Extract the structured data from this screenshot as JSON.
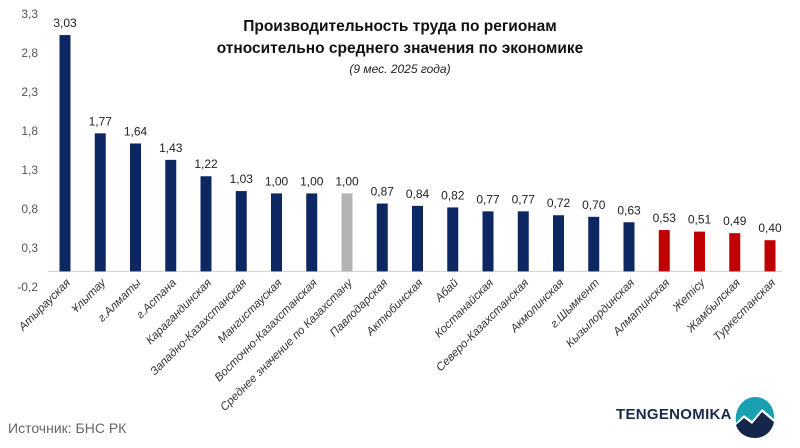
{
  "chart_data": {
    "type": "bar",
    "title_line1": "Производительность труда по регионам",
    "title_line2": "относительно среднего значения по экономике",
    "subtitle": "(9 мес. 2025 года)",
    "categories": [
      "Атырауская",
      "Ұлытау",
      "г.Алматы",
      "г.Астана",
      "Карагандинская",
      "Западно-Казахстанская",
      "Мангистауская",
      "Восточно-Казахстанская",
      "Среднее значение по Казахстану",
      "Павлодарская",
      "Актюбинская",
      "Абай",
      "Костанайская",
      "Северо-Казахстанская",
      "Акмолинская",
      "г.Шымкент",
      "Кызылординская",
      "Алматинская",
      "Жетісу",
      "Жамбылская",
      "Туркестанская"
    ],
    "values": [
      3.03,
      1.77,
      1.64,
      1.43,
      1.22,
      1.03,
      1.0,
      1.0,
      1.0,
      0.87,
      0.84,
      0.82,
      0.77,
      0.77,
      0.72,
      0.7,
      0.63,
      0.53,
      0.51,
      0.49,
      0.4
    ],
    "value_labels": [
      "3,03",
      "1,77",
      "1,64",
      "1,43",
      "1,22",
      "1,03",
      "1,00",
      "1,00",
      "1,00",
      "0,87",
      "0,84",
      "0,82",
      "0,77",
      "0,77",
      "0,72",
      "0,70",
      "0,63",
      "0,53",
      "0,51",
      "0,49",
      "0,40"
    ],
    "bar_colors": [
      "#0d2762",
      "#0d2762",
      "#0d2762",
      "#0d2762",
      "#0d2762",
      "#0d2762",
      "#0d2762",
      "#0d2762",
      "#b3b3b3",
      "#0d2762",
      "#0d2762",
      "#0d2762",
      "#0d2762",
      "#0d2762",
      "#0d2762",
      "#0d2762",
      "#0d2762",
      "#c00000",
      "#c00000",
      "#c00000",
      "#c00000"
    ],
    "yticks": [
      -0.2,
      0.3,
      0.8,
      1.3,
      1.8,
      2.3,
      2.8,
      3.3
    ],
    "ytick_labels": [
      "-0,2",
      "0,3",
      "0,8",
      "1,3",
      "1,8",
      "2,3",
      "2,8",
      "3,3"
    ],
    "ylim": [
      -0.2,
      3.3
    ],
    "grid": false
  },
  "source": "Источник: БНС РК",
  "brand": "TENGENOMIKA"
}
